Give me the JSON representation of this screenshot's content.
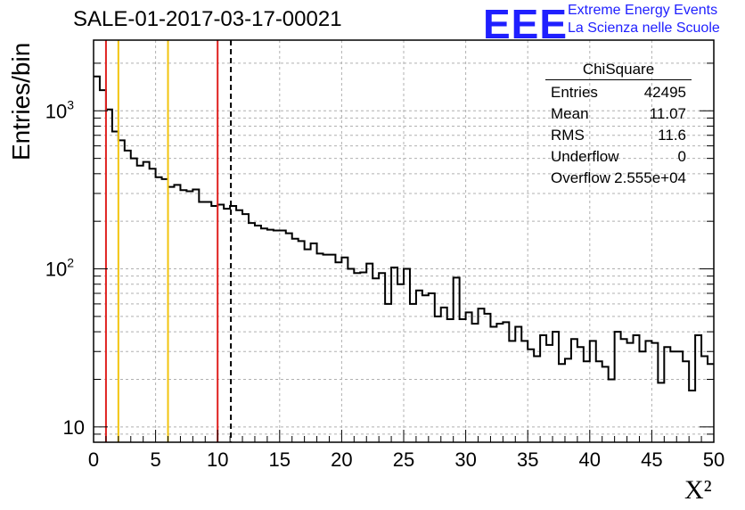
{
  "chart_data": {
    "type": "bar",
    "style": "step-histogram",
    "title": "SALE-01-2017-03-17-00021",
    "xlabel": "X²",
    "ylabel": "Entries/bin",
    "xlim": [
      0,
      50
    ],
    "ylim": [
      8,
      2800
    ],
    "yscale": "log",
    "grid": true,
    "x_ticks": [
      "0",
      "5",
      "10",
      "15",
      "20",
      "25",
      "30",
      "35",
      "40",
      "45",
      "50"
    ],
    "y_ticks": [
      {
        "value": 10,
        "base": "10",
        "exp": ""
      },
      {
        "value": 100,
        "base": "10",
        "exp": "2"
      },
      {
        "value": 1000,
        "base": "10",
        "exp": "3"
      }
    ],
    "bin_width": 0.5,
    "values": [
      1650,
      1350,
      1020,
      740,
      650,
      560,
      500,
      450,
      475,
      430,
      380,
      370,
      330,
      340,
      315,
      310,
      318,
      265,
      265,
      250,
      255,
      240,
      250,
      235,
      222,
      195,
      188,
      180,
      177,
      175,
      175,
      168,
      155,
      150,
      133,
      145,
      125,
      123,
      123,
      110,
      118,
      100,
      94,
      95,
      108,
      87,
      94,
      60,
      102,
      80,
      100,
      60,
      73,
      68,
      70,
      50,
      57,
      48,
      88,
      48,
      53,
      45,
      56,
      52,
      43,
      45,
      46,
      35,
      43,
      35,
      31,
      28,
      38,
      33,
      40,
      25,
      27,
      36,
      32,
      26,
      35,
      26,
      24,
      20,
      40,
      36,
      34,
      38,
      30,
      35,
      34,
      19,
      32,
      30,
      30,
      26,
      17,
      38,
      28,
      25
    ],
    "vertical_lines": [
      {
        "x": 1,
        "color": "#e0211f",
        "style": "solid"
      },
      {
        "x": 2,
        "color": "#f2c40f",
        "style": "solid"
      },
      {
        "x": 6,
        "color": "#f2c40f",
        "style": "solid"
      },
      {
        "x": 10,
        "color": "#e0211f",
        "style": "solid"
      },
      {
        "x": 11.07,
        "color": "#000000",
        "style": "dashed"
      }
    ],
    "legend_placement": "top-right",
    "stats": {
      "header": "ChiSquare",
      "rows": [
        {
          "label": "Entries",
          "value": "42495"
        },
        {
          "label": "Mean",
          "value": "11.07"
        },
        {
          "label": "RMS",
          "value": "11.6"
        },
        {
          "label": "Underflow",
          "value": "0"
        },
        {
          "label": "Overflow",
          "value": "2.555e+04"
        }
      ]
    }
  },
  "logo": {
    "text": "EEE",
    "line1": "Extreme Energy Events",
    "line2": "La Scienza nelle Scuole",
    "color": "#1f1fff"
  }
}
